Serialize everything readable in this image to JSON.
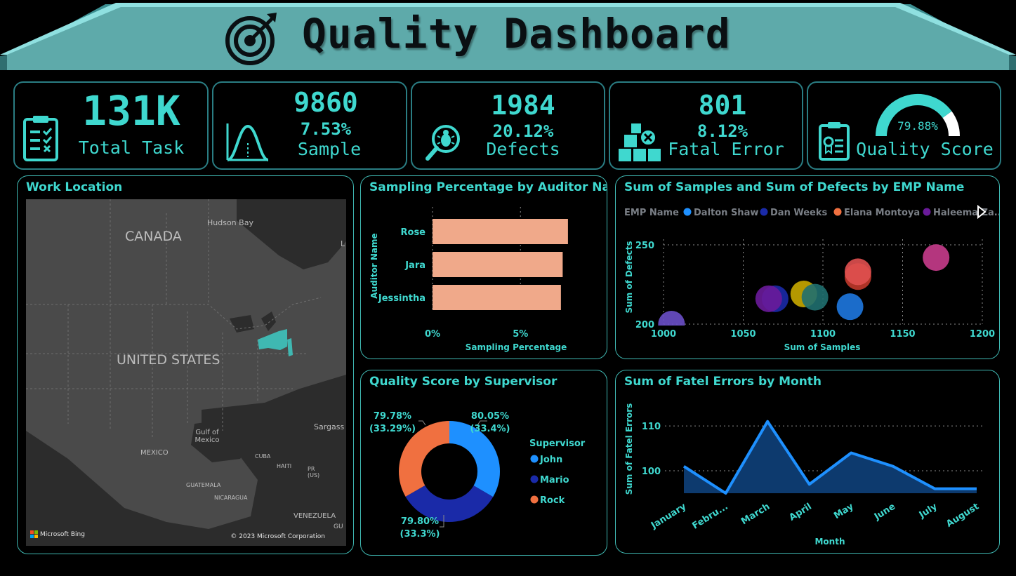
{
  "header": {
    "title": "Quality Dashboard",
    "icon": "target-icon"
  },
  "kpis": {
    "total_task": {
      "value": "131K",
      "label": "Total Task",
      "icon": "clipboard-checklist-icon"
    },
    "sample": {
      "value": "9860",
      "pct": "7.53%",
      "label": "Sample",
      "icon": "bell-curve-icon"
    },
    "defects": {
      "value": "1984",
      "pct": "20.12%",
      "label": "Defects",
      "icon": "bug-magnifier-icon"
    },
    "fatal_error": {
      "value": "801",
      "pct": "8.12%",
      "label": "Fatal Error",
      "icon": "boxes-error-icon"
    },
    "quality_score": {
      "value": "79.88%",
      "gauge_fraction": 0.7988,
      "label": "Quality Score",
      "icon": "clipboard-award-icon"
    }
  },
  "work_location": {
    "title": "Work Location",
    "labels": {
      "canada": "CANADA",
      "us": "UNITED STATES",
      "hudson": "Hudson Bay",
      "gulf": "Gulf of Mexico",
      "mexico": "MEXICO",
      "cuba": "CUBA",
      "haiti": "HAITI",
      "pr": "PR (US)",
      "guatemala": "GUATEMALA",
      "nicaragua": "NICARAGUA",
      "venezuela": "VENEZUELA",
      "sargasso": "Sargass",
      "gu": "GU",
      "l": "L"
    },
    "bing": "Microsoft Bing",
    "copyright": "© 2023 Microsoft Corporation",
    "highlight_color": "#3fb8b2"
  },
  "colors": {
    "accent": "#3fd8cf",
    "banner": "#5eaaaa",
    "bar": "#f0a98a",
    "john": "#1e90ff",
    "mario": "#1a2aa8",
    "rock": "#f07040"
  },
  "chart_data": [
    {
      "type": "bar",
      "title": "Sampling Percentage by Auditor Name",
      "categories": [
        "Rose",
        "Jara",
        "Jessintha"
      ],
      "values": [
        7.7,
        7.4,
        7.3
      ],
      "xlabel": "Sampling Percentage",
      "ylabel": "Auditor Name",
      "xlim": [
        0,
        9.5
      ],
      "xticks": [
        "0%",
        "5%"
      ],
      "xtick_values": [
        0,
        5
      ]
    },
    {
      "type": "scatter",
      "title": "Sum of Samples and Sum of Defects by EMP Name",
      "legend_title": "EMP Name",
      "legend": [
        {
          "name": "Dalton Shaw",
          "color": "#1e90ff"
        },
        {
          "name": "Dan Weeks",
          "color": "#1a2aa8"
        },
        {
          "name": "Elana Montoya",
          "color": "#f07040"
        },
        {
          "name": "Haleema Za...",
          "color": "#6a1b9a"
        }
      ],
      "points": [
        {
          "x": 1005,
          "y": 200,
          "color": "#6a4fc8"
        },
        {
          "x": 1070,
          "y": 216,
          "color": "#1a2aa8"
        },
        {
          "x": 1066,
          "y": 216,
          "color": "#6a1b9a"
        },
        {
          "x": 1088,
          "y": 219,
          "color": "#c8a800"
        },
        {
          "x": 1095,
          "y": 217,
          "color": "#1f6f6f"
        },
        {
          "x": 1117,
          "y": 211,
          "color": "#1e78e0"
        },
        {
          "x": 1122,
          "y": 230,
          "color": "#c0392b"
        },
        {
          "x": 1122,
          "y": 233,
          "color": "#e05050"
        },
        {
          "x": 1171,
          "y": 242,
          "color": "#c83c8c"
        }
      ],
      "xlabel": "Sum of Samples",
      "ylabel": "Sum of Defects",
      "xlim": [
        1000,
        1200
      ],
      "ylim": [
        200,
        250
      ],
      "xticks": [
        "1000",
        "1050",
        "1100",
        "1150",
        "1200"
      ],
      "xtick_values": [
        1000,
        1050,
        1100,
        1150,
        1200
      ],
      "yticks": [
        "200",
        "250"
      ],
      "ytick_values": [
        200,
        250
      ],
      "grid": true
    },
    {
      "type": "pie",
      "title": "Quality Score by Supervisor",
      "legend_title": "Supervisor",
      "slices": [
        {
          "name": "John",
          "value": 33.4,
          "label": "80.05%",
          "share": "(33.4%)",
          "color": "#1e90ff"
        },
        {
          "name": "Mario",
          "value": 33.3,
          "label": "79.80%",
          "share": "(33.3%)",
          "color": "#1a2aa8"
        },
        {
          "name": "Rock",
          "value": 33.29,
          "label": "79.78%",
          "share": "(33.29%)",
          "color": "#f07040"
        }
      ]
    },
    {
      "type": "area",
      "title": "Sum of Fatel Errors by Month",
      "categories": [
        "January",
        "Febru...",
        "March",
        "April",
        "May",
        "June",
        "July",
        "August"
      ],
      "values": [
        101,
        95,
        111,
        97,
        104,
        101,
        96,
        96
      ],
      "xlabel": "Month",
      "ylabel": "Sum of Fatel Errors",
      "ylim": [
        95,
        113
      ],
      "yticks": [
        "100",
        "110"
      ],
      "ytick_values": [
        100,
        110
      ],
      "grid": true
    }
  ]
}
